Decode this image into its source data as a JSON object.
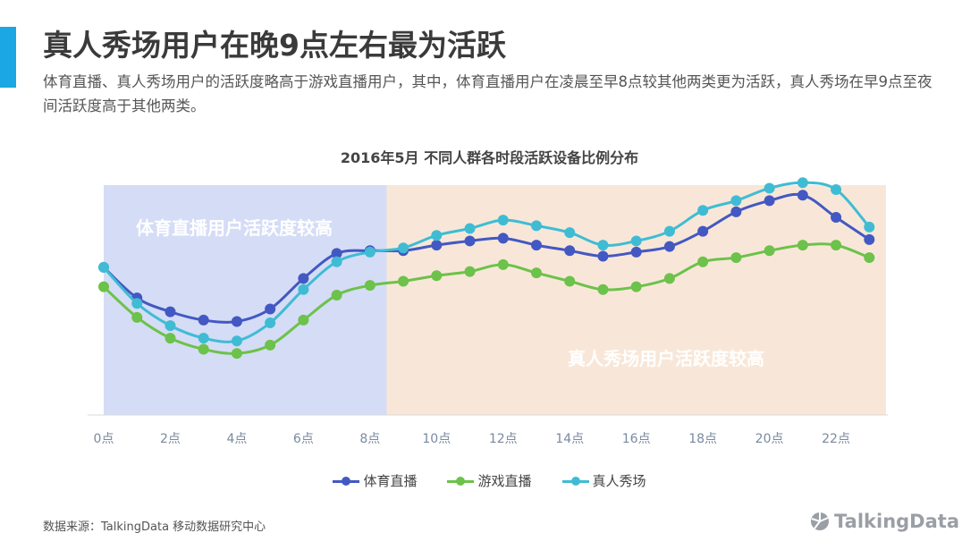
{
  "header": {
    "title": "真人秀场用户在晚9点左右最为活跃",
    "subtitle": "体育直播、真人秀场用户的活跃度略高于游戏直播用户，其中，体育直播用户在凌晨至早8点较其他两类更为活跃，真人秀场在早9点至夜间活跃度高于其他两类。"
  },
  "footer": {
    "source": "数据来源：TalkingData 移动数据研究中心",
    "brand": "TalkingData"
  },
  "chart_data": {
    "type": "line",
    "title": "2016年5月 不同人群各时段活跃设备比例分布",
    "x": [
      0,
      1,
      2,
      3,
      4,
      5,
      6,
      7,
      8,
      9,
      10,
      11,
      12,
      13,
      14,
      15,
      16,
      17,
      18,
      19,
      20,
      21,
      22,
      23
    ],
    "xticks": [
      "0点",
      "2点",
      "4点",
      "6点",
      "8点",
      "10点",
      "12点",
      "14点",
      "16点",
      "18点",
      "20点",
      "22点"
    ],
    "xlabel": "",
    "ylabel": "",
    "grid": false,
    "legend": "bottom",
    "regions": [
      {
        "from": 0,
        "to": 8.5,
        "label": "体育直播用户活跃度较高",
        "color": "#d5dcf6"
      },
      {
        "from": 8.5,
        "to": 23.5,
        "label": "真人秀场用户活跃度较高",
        "color": "#f8e7d8"
      }
    ],
    "series": [
      {
        "name": "体育直播",
        "color": "#4358c2",
        "values": [
          53,
          42,
          37,
          34,
          33.5,
          38,
          49,
          58,
          59,
          59,
          61,
          62.5,
          63.5,
          61,
          59,
          57,
          58.5,
          60.5,
          66,
          73,
          77,
          79,
          71,
          63
        ]
      },
      {
        "name": "游戏直播",
        "color": "#6cc24a",
        "values": [
          46,
          35,
          27.5,
          23.5,
          22,
          25,
          34,
          43,
          46.5,
          48,
          50,
          51.5,
          54,
          51,
          48,
          45,
          46,
          49,
          55,
          56.5,
          59,
          61,
          61,
          56.5
        ]
      },
      {
        "name": "真人秀场",
        "color": "#3fbcd4",
        "values": [
          53,
          40,
          32,
          27.5,
          26.5,
          33,
          45,
          55,
          58.5,
          60,
          64.5,
          67,
          70,
          68,
          65.5,
          61,
          62.5,
          66,
          73.5,
          77,
          81.5,
          83.5,
          81,
          67.5
        ]
      }
    ]
  }
}
